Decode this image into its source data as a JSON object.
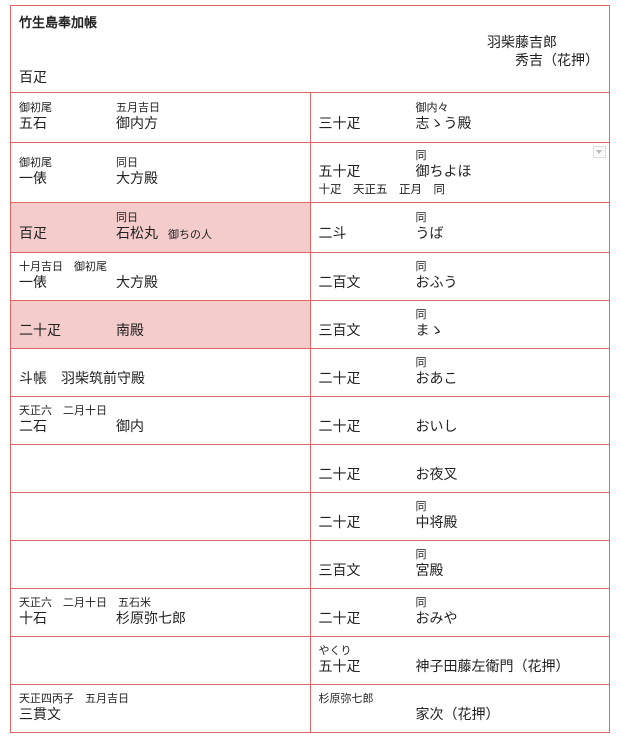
{
  "header": {
    "title": "竹生島奉加帳",
    "amount": "百疋",
    "signature_line1": "羽柴藤吉郎",
    "signature_line2": "秀吉（花押）"
  },
  "colors": {
    "border": "#e06666",
    "highlight": "#f4cccc"
  },
  "rows": [
    {
      "left": {
        "note": "御初尾",
        "note2": "五月吉日",
        "amount": "五石",
        "name": "御内方"
      },
      "right": {
        "note": "",
        "note2": "御内々",
        "amount": "三十疋",
        "name": "志ゝう殿"
      }
    },
    {
      "left": {
        "note": "御初尾",
        "note2": "同日",
        "amount": "一俵",
        "name": "大方殿"
      },
      "right": {
        "note": "",
        "note2": "同",
        "amount": "五十疋",
        "name": "御ちよほ",
        "sub": "十疋　天正五　正月　同",
        "dropdown": "dropdown-arrow-icon"
      }
    },
    {
      "left": {
        "note": "",
        "note2": "同日",
        "amount": "百疋",
        "name": "石松丸",
        "extra": "御ちの人",
        "highlight": true
      },
      "right": {
        "note": "",
        "note2": "同",
        "amount": "二斗",
        "name": "うば"
      }
    },
    {
      "left": {
        "note": "十月吉日　御初尾",
        "note2": "",
        "amount": "一俵",
        "name": "大方殿"
      },
      "right": {
        "note": "",
        "note2": "同",
        "amount": "二百文",
        "name": "おふう"
      }
    },
    {
      "left": {
        "note": "",
        "note2": "",
        "amount": "二十疋",
        "name": "南殿",
        "highlight": true
      },
      "right": {
        "note": "",
        "note2": "同",
        "amount": "三百文",
        "name": "まゝ"
      }
    },
    {
      "left": {
        "note": "",
        "note2": "",
        "amount": "斗帳　羽柴筑前守殿",
        "name": ""
      },
      "right": {
        "note": "",
        "note2": "同",
        "amount": "二十疋",
        "name": "おあこ"
      }
    },
    {
      "left": {
        "note": "天正六　二月十日",
        "note2": "",
        "amount": "二石",
        "name": "御内"
      },
      "right": {
        "note": "",
        "note2": "",
        "amount": "二十疋",
        "name": "おいし"
      }
    },
    {
      "left": {},
      "right": {
        "note": "",
        "note2": "",
        "amount": "二十疋",
        "name": "お夜叉"
      }
    },
    {
      "left": {},
      "right": {
        "note": "",
        "note2": "同",
        "amount": "二十疋",
        "name": "中将殿"
      }
    },
    {
      "left": {},
      "right": {
        "note": "",
        "note2": "同",
        "amount": "三百文",
        "name": "宮殿"
      }
    },
    {
      "left": {
        "note": "天正六　二月十日　五石米",
        "note2": "",
        "amount": "十石",
        "name": "杉原弥七郎"
      },
      "right": {
        "note": "",
        "note2": "同",
        "amount": "二十疋",
        "name": "おみや"
      }
    },
    {
      "left": {},
      "right": {
        "note": "やくり",
        "note2": "",
        "amount": "五十疋",
        "name": "神子田藤左衛門（花押）"
      }
    },
    {
      "left": {
        "note": "天正四丙子　五月吉日",
        "note2": "",
        "amount": "三貫文",
        "name": ""
      },
      "right": {
        "note": "杉原弥七郎",
        "note2": "",
        "amount": "",
        "name": "家次（花押）"
      }
    }
  ]
}
